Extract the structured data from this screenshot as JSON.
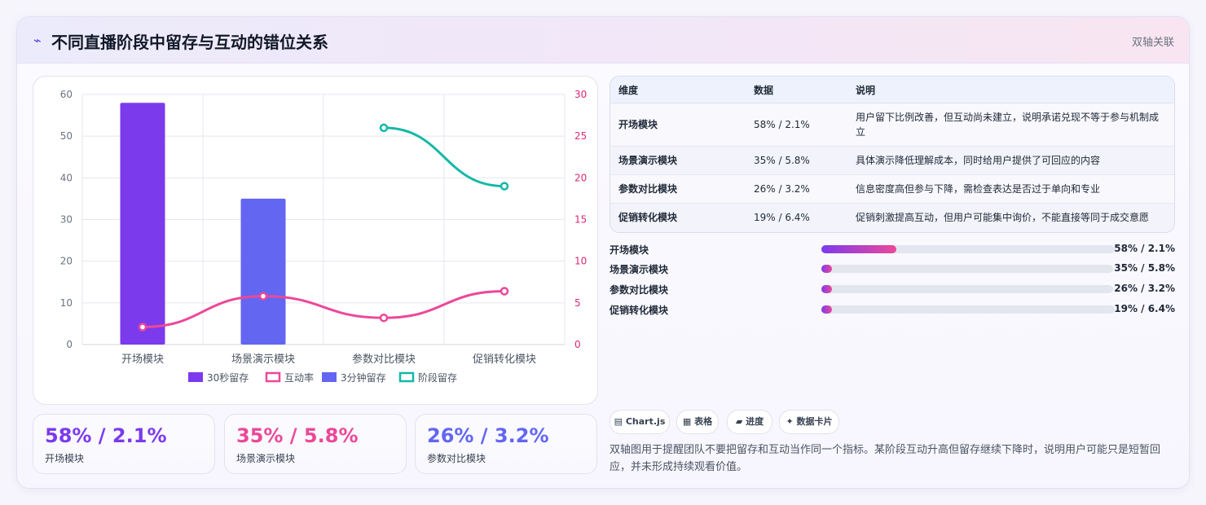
{
  "header": {
    "icon": "trend-icon",
    "title": "不同直播阶段中留存与互动的错位关系",
    "tag": "双轴关联"
  },
  "chart_data": {
    "type": "bar",
    "categories": [
      "开场模块",
      "场景演示模块",
      "参数对比模块",
      "促销转化模块"
    ],
    "y_left": {
      "min": 0,
      "max": 60,
      "ticks": [
        0,
        10,
        20,
        30,
        40,
        50,
        60
      ]
    },
    "y_right": {
      "min": 0,
      "max": 30,
      "ticks": [
        0,
        5,
        10,
        15,
        20,
        25,
        30
      ]
    },
    "series": [
      {
        "name": "30秒留存",
        "kind": "bar",
        "axis": "left",
        "color": "#7c3aed",
        "values": [
          58,
          null,
          null,
          null
        ]
      },
      {
        "name": "互动率",
        "kind": "line",
        "axis": "right",
        "color": "#ec4899",
        "values": [
          2.1,
          5.8,
          3.2,
          6.4
        ]
      },
      {
        "name": "3分钟留存",
        "kind": "bar",
        "axis": "left",
        "color": "#6366f1",
        "values": [
          null,
          35,
          null,
          null
        ]
      },
      {
        "name": "阶段留存",
        "kind": "line",
        "axis": "right",
        "color": "#14b8a6",
        "values": [
          null,
          null,
          26,
          19
        ]
      }
    ],
    "legend_position": "bottom"
  },
  "stats": [
    {
      "value": "58% / 2.1%",
      "label": "开场模块",
      "color": "#7c3aed"
    },
    {
      "value": "35% / 5.8%",
      "label": "场景演示模块",
      "color": "#ec4899"
    },
    {
      "value": "26% / 3.2%",
      "label": "参数对比模块",
      "color": "#6366f1"
    }
  ],
  "table": {
    "headers": [
      "维度",
      "数据",
      "说明"
    ],
    "rows": [
      {
        "dim": "开场模块",
        "data": "58% / 2.1%",
        "desc": "用户留下比例改善，但互动尚未建立，说明承诺兑现不等于参与机制成立"
      },
      {
        "dim": "场景演示模块",
        "data": "35% / 5.8%",
        "desc": "具体演示降低理解成本，同时给用户提供了可回应的内容"
      },
      {
        "dim": "参数对比模块",
        "data": "26% / 3.2%",
        "desc": "信息密度高但参与下降，需检查表达是否过于单向和专业"
      },
      {
        "dim": "促销转化模块",
        "data": "19% / 6.4%",
        "desc": "促销刺激提高互动，但用户可能集中询价，不能直接等同于成交意愿"
      }
    ]
  },
  "progress": [
    {
      "name": "开场模块",
      "value": "58% / 2.1%",
      "fraction": 0.255
    },
    {
      "name": "场景演示模块",
      "value": "35% / 5.8%",
      "fraction": 0.035
    },
    {
      "name": "参数对比模块",
      "value": "26% / 3.2%",
      "fraction": 0.035
    },
    {
      "name": "促销转化模块",
      "value": "19% / 6.4%",
      "fraction": 0.035
    }
  ],
  "chips": [
    {
      "icon": "chart-icon",
      "glyph": "▤",
      "label": "Chart.js"
    },
    {
      "icon": "table-icon",
      "glyph": "▦",
      "label": "表格"
    },
    {
      "icon": "progress-icon",
      "glyph": "▰",
      "label": "进度"
    },
    {
      "icon": "sparkle-icon",
      "glyph": "✦",
      "label": "数据卡片"
    }
  ],
  "note": "双轴图用于提醒团队不要把留存和互动当作同一个指标。某阶段互动升高但留存继续下降时，说明用户可能只是短暂回应，并未形成持续观看价值。"
}
